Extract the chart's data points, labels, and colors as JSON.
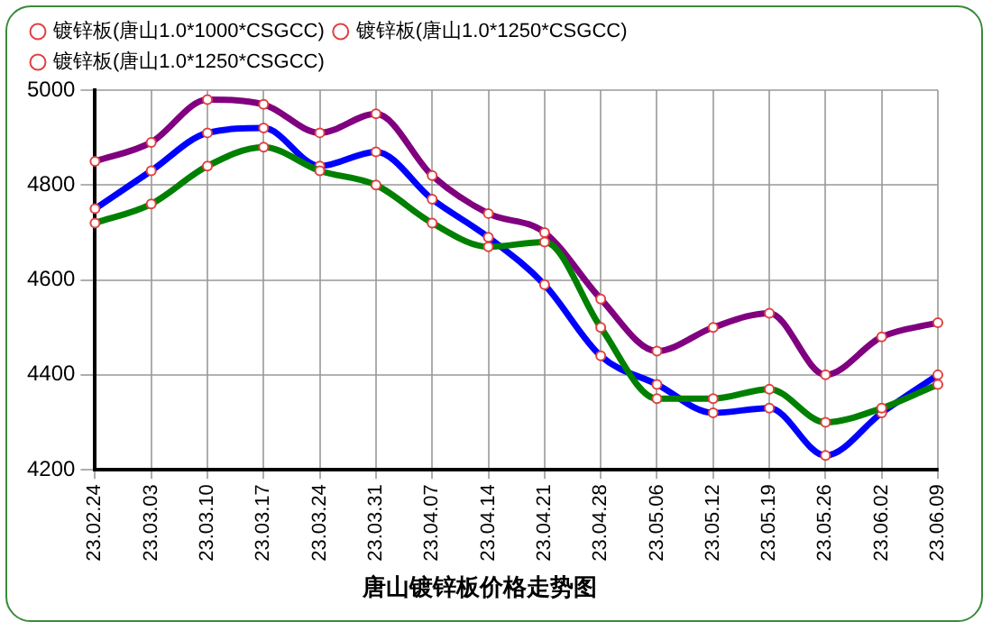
{
  "chart_data": {
    "type": "line",
    "title": "唐山镀锌板价格走势图",
    "categories": [
      "23.02.24",
      "23.03.03",
      "23.03.10",
      "23.03.17",
      "23.03.24",
      "23.03.31",
      "23.04.07",
      "23.04.14",
      "23.04.21",
      "23.04.28",
      "23.05.06",
      "23.05.12",
      "23.05.19",
      "23.05.26",
      "23.06.02",
      "23.06.09"
    ],
    "series": [
      {
        "name": "镀锌板(唐山1.0*1000*CSGCC)",
        "color": "#008000",
        "values": [
          4720,
          4760,
          4840,
          4880,
          4830,
          4800,
          4720,
          4670,
          4680,
          4500,
          4350,
          4350,
          4370,
          4300,
          4330,
          4380
        ]
      },
      {
        "name": "镀锌板(唐山1.0*1250*CSGCC)",
        "color": "#0000ff",
        "values": [
          4750,
          4830,
          4910,
          4920,
          4840,
          4870,
          4770,
          4690,
          4590,
          4440,
          4380,
          4320,
          4330,
          4230,
          4320,
          4400
        ]
      },
      {
        "name": "镀锌板(唐山1.0*1250*CSGCC)",
        "color": "#800080",
        "values": [
          4850,
          4890,
          4980,
          4970,
          4910,
          4950,
          4820,
          4740,
          4700,
          4560,
          4450,
          4500,
          4530,
          4400,
          4480,
          4510
        ]
      }
    ],
    "ylim": [
      4200,
      5000
    ],
    "yticks": [
      4200,
      4400,
      4600,
      4800,
      5000
    ],
    "grid": true,
    "legend": "top",
    "marker": "circle",
    "line_style": "solid"
  }
}
